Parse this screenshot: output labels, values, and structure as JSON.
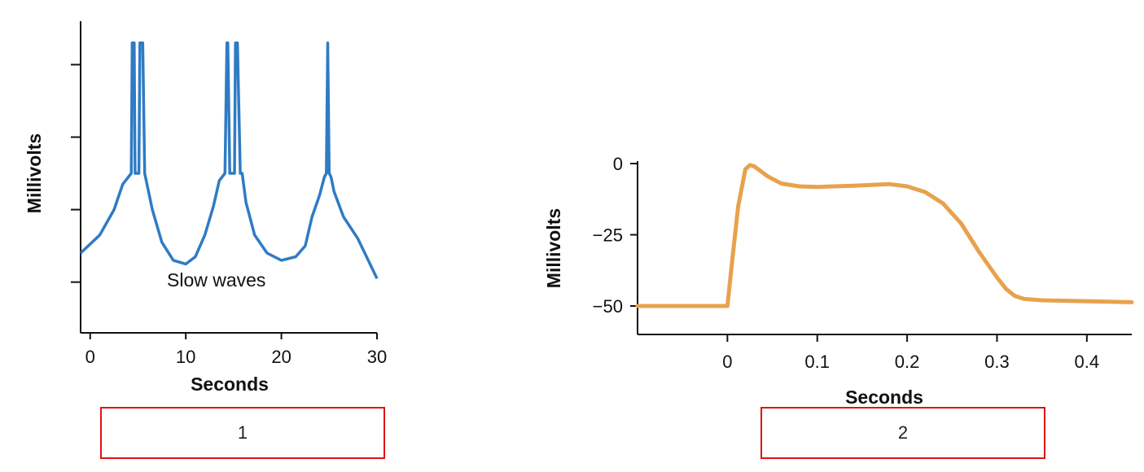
{
  "chart_data": [
    {
      "type": "line",
      "xlabel": "Seconds",
      "ylabel": "Millivolts",
      "x_ticks": [
        "0",
        "10",
        "20",
        "30"
      ],
      "xlim": [
        -1,
        30
      ],
      "ylim": [
        0,
        4.3
      ],
      "y_ticks_unlabeled": [
        0.7,
        1.7,
        2.7,
        3.7
      ],
      "annotation": "Slow waves",
      "color": "#2f7bc4",
      "series": [
        {
          "x": [
            -1,
            1,
            2.5,
            3.4,
            4.3,
            4.4,
            4.6,
            4.7,
            5.1,
            5.2,
            5.5,
            5.7,
            6.5,
            7.5,
            8.7,
            10,
            11,
            12,
            12.9,
            13.5,
            14.1,
            14.3,
            14.4,
            14.6,
            15.1,
            15.2,
            15.4,
            15.7,
            15.9,
            16.3,
            17.2,
            18.5,
            20,
            21.5,
            22.5,
            23.2,
            24,
            24.5,
            24.7,
            24.85,
            25,
            25.2,
            25.5,
            26.5,
            28,
            30
          ],
          "y": [
            1.1,
            1.35,
            1.7,
            2.05,
            2.2,
            4.0,
            4.0,
            2.2,
            2.2,
            4.0,
            4.0,
            2.2,
            1.7,
            1.25,
            1.0,
            0.95,
            1.05,
            1.35,
            1.75,
            2.1,
            2.2,
            4.0,
            4.0,
            2.2,
            2.2,
            4.0,
            4.0,
            2.2,
            2.2,
            1.8,
            1.35,
            1.1,
            1.0,
            1.05,
            1.2,
            1.6,
            1.9,
            2.15,
            2.2,
            4.0,
            2.2,
            2.15,
            1.95,
            1.6,
            1.3,
            0.75
          ]
        }
      ]
    },
    {
      "type": "line",
      "xlabel": "Seconds",
      "ylabel": "Millivolts",
      "x_ticks": [
        "0",
        "0.1",
        "0.2",
        "0.3",
        "0.4"
      ],
      "y_ticks": [
        "0",
        "−25",
        "−50"
      ],
      "xlim": [
        -0.1,
        0.45
      ],
      "ylim": [
        -60,
        0
      ],
      "color": "#e8a24c",
      "series": [
        {
          "x": [
            -0.1,
            0.0,
            0.005,
            0.012,
            0.02,
            0.025,
            0.03,
            0.045,
            0.06,
            0.08,
            0.1,
            0.14,
            0.18,
            0.2,
            0.22,
            0.24,
            0.26,
            0.28,
            0.3,
            0.31,
            0.32,
            0.33,
            0.35,
            0.4,
            0.45
          ],
          "y": [
            -50,
            -50,
            -35,
            -15,
            -2,
            -0.5,
            -1,
            -4.5,
            -7,
            -8,
            -8.2,
            -7.8,
            -7.2,
            -8,
            -10,
            -14,
            -21,
            -31,
            -40,
            -44,
            -46.5,
            -47.5,
            -48,
            -48.3,
            -48.7
          ]
        }
      ]
    }
  ],
  "labels": {
    "box1": "1",
    "box2": "2"
  }
}
